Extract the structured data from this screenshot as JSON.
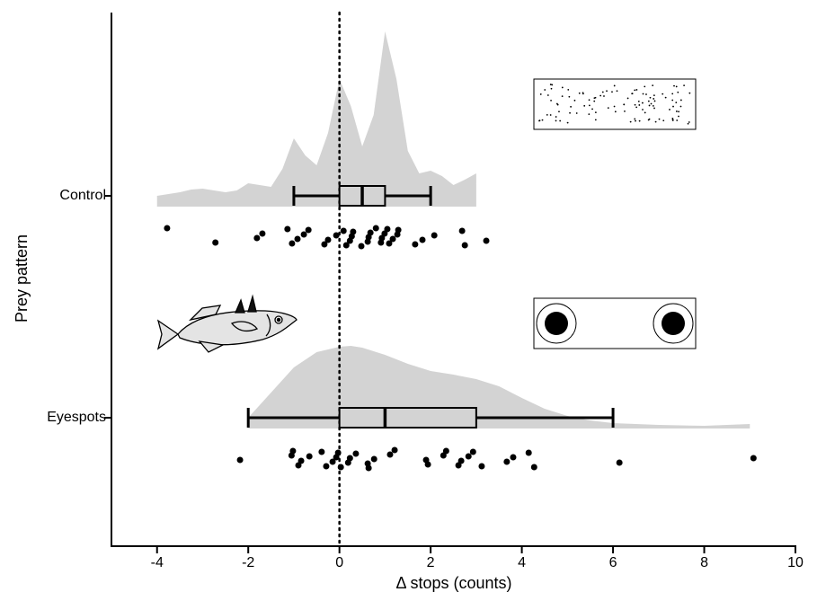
{
  "chart_data": {
    "type": "raincloud",
    "xlabel": "Δ stops (counts)",
    "ylabel": "Prey pattern",
    "xlim": [
      -5,
      10
    ],
    "xticks": [
      -4,
      -2,
      0,
      2,
      4,
      6,
      8,
      10
    ],
    "reference_line": 0,
    "color": "#d3d3d3",
    "categories": [
      "Control",
      "Eyespots"
    ],
    "groups": [
      {
        "box": {
          "whisker_low": -1,
          "q1": 0,
          "median": 0.5,
          "q3": 1,
          "whisker_high": 2
        },
        "density": {
          "x": [
            -4,
            -3.75,
            -3.5,
            -3.25,
            -3,
            -2.75,
            -2.5,
            -2.25,
            -2,
            -1.75,
            -1.5,
            -1.25,
            -1,
            -0.75,
            -0.5,
            -0.25,
            0,
            0.25,
            0.5,
            0.75,
            1,
            1.25,
            1.5,
            1.75,
            2,
            2.25,
            2.5,
            2.75,
            3
          ],
          "values": [
            12,
            14,
            16,
            19,
            20,
            18,
            16,
            18,
            26,
            24,
            22,
            42,
            76,
            57,
            46,
            82,
            142,
            112,
            67,
            102,
            195,
            142,
            62,
            37,
            40,
            34,
            24,
            30,
            37
          ]
        },
        "points": [
          -3.78,
          -2.72,
          -1.81,
          -1.69,
          -1.14,
          -1.04,
          -0.92,
          -0.78,
          -0.68,
          -0.33,
          -0.25,
          -0.07,
          0.09,
          0.15,
          0.23,
          0.27,
          0.3,
          0.48,
          0.62,
          0.64,
          0.68,
          0.8,
          0.91,
          0.93,
          0.99,
          1.05,
          1.09,
          1.17,
          1.27,
          1.29,
          1.66,
          1.82,
          2.08,
          2.69,
          2.75,
          3.22
        ]
      },
      {
        "box": {
          "whisker_low": -2,
          "q1": 0,
          "median": 1,
          "q3": 3,
          "whisker_high": 6
        },
        "density": {
          "x": [
            -2,
            -1.5,
            -1,
            -0.5,
            0,
            0.25,
            0.5,
            1,
            1.5,
            2,
            2.5,
            3,
            3.5,
            4,
            4.5,
            5,
            5.5,
            6,
            7,
            8,
            8.5,
            9
          ],
          "values": [
            12,
            40,
            68,
            85,
            91,
            92,
            90,
            82,
            72,
            64,
            60,
            55,
            47,
            34,
            22,
            14,
            9,
            6,
            4,
            3,
            4,
            5
          ]
        },
        "points": [
          -2.18,
          -1.05,
          -1.02,
          -0.9,
          -0.84,
          -0.66,
          -0.39,
          -0.29,
          -0.15,
          -0.07,
          -0.03,
          0.03,
          0.19,
          0.23,
          0.36,
          0.64,
          0.62,
          0.76,
          1.11,
          1.21,
          1.94,
          1.9,
          2.28,
          2.34,
          2.61,
          2.67,
          2.83,
          2.93,
          3.12,
          3.67,
          3.81,
          4.15,
          4.27,
          6.14,
          9.08
        ]
      }
    ]
  }
}
